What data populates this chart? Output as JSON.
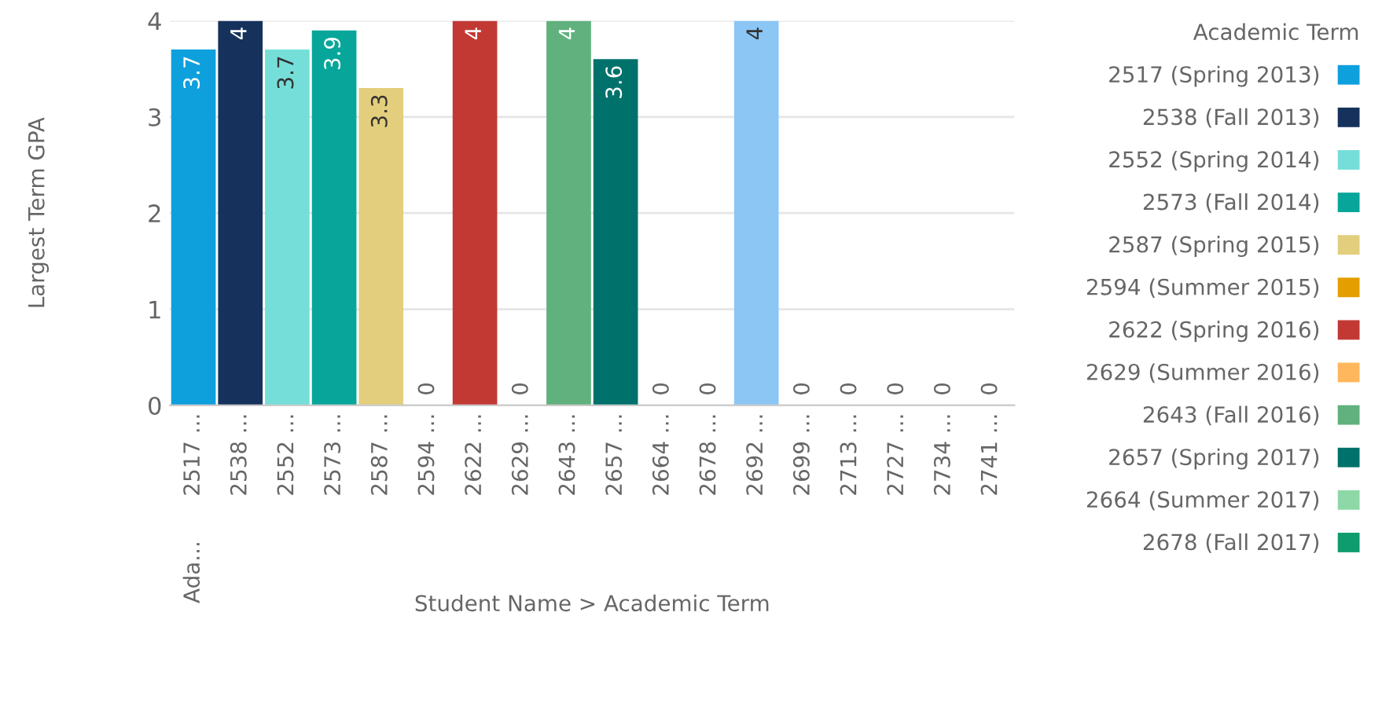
{
  "chart_data": {
    "type": "bar",
    "ylabel": "Largest Term GPA",
    "xlabel": "Student Name > Academic Term",
    "legend_title": "Academic Term",
    "categories": [
      "2517 ...",
      "2538 ...",
      "2552 ...",
      "2573 ...",
      "2587 ...",
      "2594 ...",
      "2622 ...",
      "2629 ...",
      "2643 ...",
      "2657 ...",
      "2664 ...",
      "2678 ...",
      "2692 ...",
      "2699 ...",
      "2713 ...",
      "2727 ...",
      "2734 ...",
      "2741 ..."
    ],
    "series": [
      {
        "name": "2517 (Spring 2013)",
        "color": "#0ea0dd",
        "values": [
          3.7,
          null,
          null,
          null,
          null,
          null,
          null,
          null,
          null,
          null,
          null,
          null,
          null,
          null,
          null,
          null,
          null,
          null
        ]
      },
      {
        "name": "2538 (Fall 2013)",
        "color": "#16325c",
        "values": [
          null,
          4,
          null,
          null,
          null,
          null,
          null,
          null,
          null,
          null,
          null,
          null,
          null,
          null,
          null,
          null,
          null,
          null
        ]
      },
      {
        "name": "2552 (Spring 2014)",
        "color": "#76ded9",
        "values": [
          null,
          null,
          3.7,
          null,
          null,
          null,
          null,
          null,
          null,
          null,
          null,
          null,
          null,
          null,
          null,
          null,
          null,
          null
        ]
      },
      {
        "name": "2573 (Fall 2014)",
        "color": "#08a69a",
        "values": [
          null,
          null,
          null,
          3.9,
          null,
          null,
          null,
          null,
          null,
          null,
          null,
          null,
          null,
          null,
          null,
          null,
          null,
          null
        ]
      },
      {
        "name": "2587 (Spring 2015)",
        "color": "#e2ce7d",
        "values": [
          null,
          null,
          null,
          null,
          3.3,
          null,
          null,
          null,
          null,
          null,
          null,
          null,
          null,
          null,
          null,
          null,
          null,
          null
        ]
      },
      {
        "name": "2594 (Summer 2015)",
        "color": "#e49e00",
        "values": [
          null,
          null,
          null,
          null,
          null,
          0,
          null,
          null,
          null,
          null,
          null,
          null,
          null,
          null,
          null,
          null,
          null,
          null
        ]
      },
      {
        "name": "2622 (Spring 2016)",
        "color": "#c23934",
        "values": [
          null,
          null,
          null,
          null,
          null,
          null,
          4,
          null,
          null,
          null,
          null,
          null,
          null,
          null,
          null,
          null,
          null,
          null
        ]
      },
      {
        "name": "2629 (Summer 2016)",
        "color": "#ffb75d",
        "values": [
          null,
          null,
          null,
          null,
          null,
          null,
          null,
          0,
          null,
          null,
          null,
          null,
          null,
          null,
          null,
          null,
          null,
          null
        ]
      },
      {
        "name": "2643 (Fall 2016)",
        "color": "#60b17d",
        "values": [
          null,
          null,
          null,
          null,
          null,
          null,
          null,
          null,
          4,
          null,
          null,
          null,
          null,
          null,
          null,
          null,
          null,
          null
        ]
      },
      {
        "name": "2657 (Spring 2017)",
        "color": "#00716b",
        "values": [
          null,
          null,
          null,
          null,
          null,
          null,
          null,
          null,
          null,
          3.6,
          null,
          null,
          null,
          null,
          null,
          null,
          null,
          null
        ]
      },
      {
        "name": "2664 (Summer 2017)",
        "color": "#8ed8a8",
        "values": [
          null,
          null,
          null,
          null,
          null,
          null,
          null,
          null,
          null,
          null,
          0,
          null,
          null,
          null,
          null,
          null,
          null,
          null
        ]
      },
      {
        "name": "2678 (Fall 2017)",
        "color": "#0e9b6d",
        "values": [
          null,
          null,
          null,
          null,
          null,
          null,
          null,
          null,
          null,
          null,
          null,
          0,
          null,
          null,
          null,
          null,
          null,
          null
        ]
      },
      {
        "color": "#8bc6f5",
        "values": [
          null,
          null,
          null,
          null,
          null,
          null,
          null,
          null,
          null,
          null,
          null,
          null,
          4,
          null,
          null,
          null,
          null,
          null
        ]
      },
      {
        "values": [
          null,
          null,
          null,
          null,
          null,
          null,
          null,
          null,
          null,
          null,
          null,
          null,
          null,
          0,
          null,
          null,
          null,
          null
        ]
      },
      {
        "values": [
          null,
          null,
          null,
          null,
          null,
          null,
          null,
          null,
          null,
          null,
          null,
          null,
          null,
          null,
          0,
          null,
          null,
          null
        ]
      },
      {
        "values": [
          null,
          null,
          null,
          null,
          null,
          null,
          null,
          null,
          null,
          null,
          null,
          null,
          null,
          null,
          null,
          0,
          null,
          null
        ]
      },
      {
        "values": [
          null,
          null,
          null,
          null,
          null,
          null,
          null,
          null,
          null,
          null,
          null,
          null,
          null,
          null,
          null,
          null,
          0,
          null
        ]
      },
      {
        "values": [
          null,
          null,
          null,
          null,
          null,
          null,
          null,
          null,
          null,
          null,
          null,
          null,
          null,
          null,
          null,
          null,
          null,
          0
        ]
      }
    ],
    "annotations": [
      "Ada..."
    ],
    "ylim": [
      0,
      4
    ],
    "yticks": [
      0,
      1,
      2,
      3,
      4
    ],
    "grid": "y",
    "legend": "right",
    "data_labels": true
  }
}
